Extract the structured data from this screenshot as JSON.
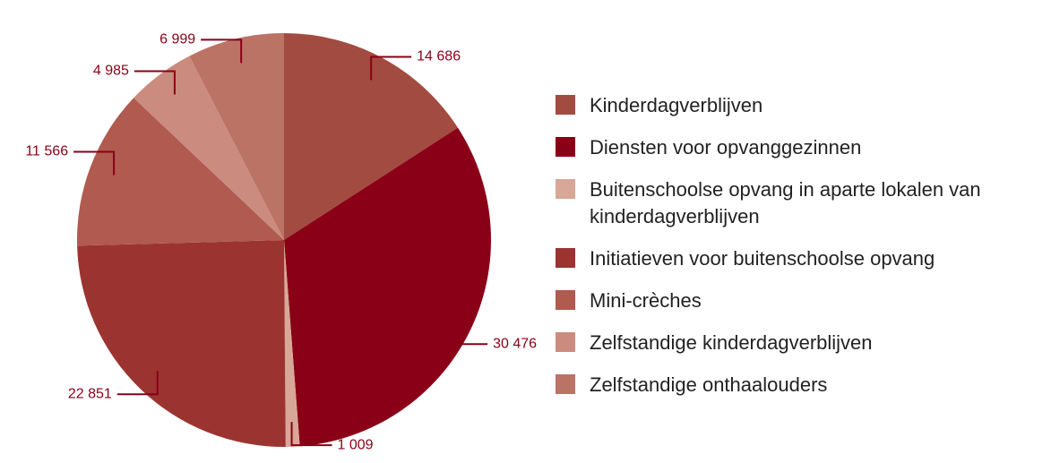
{
  "chart_data": {
    "type": "pie",
    "categories": [
      "Kinderdagverblijven",
      "Diensten voor opvanggezinnen",
      "Buitenschoolse opvang in aparte lokalen van kinderdagverblijven",
      "Initiatieven voor buitenschoolse opvang",
      "Mini-crèches",
      "Zelfstandige kinderdagverblijven",
      "Zelfstandige onthaalouders"
    ],
    "values": [
      14686,
      30476,
      1009,
      22851,
      11566,
      4985,
      6999
    ],
    "value_labels": [
      "14 686",
      "30 476",
      "1 009",
      "22 851",
      "11 566",
      "4 985",
      "6 999"
    ],
    "colors": [
      "#a24b40",
      "#8a0016",
      "#d8a798",
      "#9b3430",
      "#b05a50",
      "#cb8b7f",
      "#bb7366"
    ]
  }
}
